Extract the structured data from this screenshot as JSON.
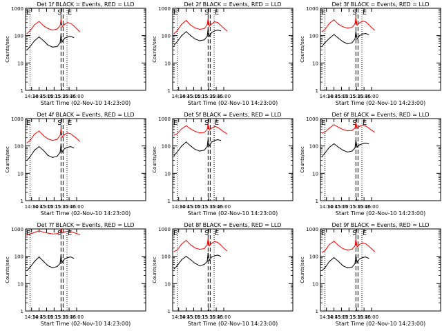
{
  "chart_data": [
    {
      "type": "line",
      "title": "Det 1f BLACK = Events, RED = LLD",
      "xlabel": "Start Time (02-Nov-10 14:23:00)",
      "ylabel": "Counts/sec",
      "ylog": true,
      "ylim": [
        1,
        1000
      ],
      "xlim_minutes": [
        14.3,
        18.3
      ],
      "yticks": [
        "1",
        "10",
        "100",
        "1000"
      ],
      "xticks": [
        "14:30",
        "14:45",
        "15:00",
        "15:15",
        "15:30",
        "15:45",
        "16:00"
      ],
      "annotations": {
        "E_left": "E",
        "S": "S",
        "E_right": "E"
      },
      "series": [
        {
          "name": "LLD",
          "color": "#ff0000",
          "x": [
            14.35,
            14.45,
            14.6,
            14.75,
            14.9,
            15.05,
            15.2,
            15.35,
            15.45,
            15.48,
            15.52,
            15.6,
            15.7,
            15.8,
            15.9,
            16.0,
            16.1
          ],
          "y": [
            120,
            150,
            250,
            330,
            230,
            180,
            160,
            175,
            230,
            400,
            210,
            260,
            300,
            280,
            230,
            180,
            140
          ]
        },
        {
          "name": "Events",
          "color": "#000000",
          "x": [
            14.35,
            14.45,
            14.6,
            14.75,
            14.9,
            15.05,
            15.2,
            15.35,
            15.45,
            15.48,
            15.52,
            15.6,
            15.7,
            15.8,
            15.9
          ],
          "y": [
            30,
            40,
            65,
            90,
            65,
            45,
            38,
            40,
            55,
            110,
            60,
            80,
            90,
            95,
            85
          ]
        }
      ]
    },
    {
      "type": "line",
      "title": "Det 2f BLACK = Events, RED = LLD",
      "xlabel": "Start Time (02-Nov-10 14:23:00)",
      "ylabel": "Counts/sec",
      "ylog": true,
      "ylim": [
        1,
        1000
      ],
      "xlim_minutes": [
        14.3,
        18.3
      ],
      "yticks": [
        "1",
        "10",
        "100",
        "1000"
      ],
      "xticks": [
        "14:30",
        "14:45",
        "15:00",
        "15:15",
        "15:30",
        "15:45",
        "16:00"
      ],
      "annotations": {
        "E_left": "E",
        "S": "S",
        "E_right": "E"
      },
      "series": [
        {
          "name": "LLD",
          "color": "#ff0000",
          "x": [
            14.35,
            14.45,
            14.6,
            14.75,
            14.9,
            15.05,
            15.2,
            15.35,
            15.45,
            15.48,
            15.52,
            15.6,
            15.7,
            15.8,
            15.9,
            16.0,
            16.1
          ],
          "y": [
            120,
            150,
            260,
            360,
            240,
            190,
            170,
            180,
            250,
            420,
            220,
            270,
            320,
            300,
            240,
            190,
            150
          ]
        },
        {
          "name": "Events",
          "color": "#000000",
          "x": [
            14.35,
            14.45,
            14.6,
            14.75,
            14.9,
            15.05,
            15.2,
            15.35,
            15.45,
            15.48,
            15.52,
            15.6,
            15.7,
            15.8,
            15.9
          ],
          "y": [
            45,
            60,
            100,
            140,
            100,
            75,
            65,
            70,
            95,
            180,
            95,
            130,
            150,
            160,
            150
          ]
        }
      ]
    },
    {
      "type": "line",
      "title": "Det 3f BLACK = Events, RED = LLD",
      "xlabel": "Start Time (02-Nov-10 14:23:00)",
      "ylabel": "Counts/sec",
      "ylog": true,
      "ylim": [
        1,
        1000
      ],
      "xlim_minutes": [
        14.3,
        18.3
      ],
      "yticks": [
        "1",
        "10",
        "100",
        "1000"
      ],
      "xticks": [
        "14:30",
        "14:45",
        "15:00",
        "15:15",
        "15:30",
        "15:45",
        "16:00"
      ],
      "annotations": {
        "E_left": "E",
        "S": "S",
        "E_right": "E"
      },
      "series": [
        {
          "name": "LLD",
          "color": "#ff0000",
          "x": [
            14.35,
            14.45,
            14.6,
            14.75,
            14.9,
            15.05,
            15.2,
            15.35,
            15.45,
            15.48,
            15.52,
            15.6,
            15.7,
            15.8,
            15.9,
            16.0,
            16.1
          ],
          "y": [
            140,
            170,
            280,
            380,
            260,
            210,
            190,
            200,
            270,
            460,
            240,
            290,
            340,
            320,
            260,
            200,
            160
          ]
        },
        {
          "name": "Events",
          "color": "#000000",
          "x": [
            14.35,
            14.45,
            14.6,
            14.75,
            14.9,
            15.05,
            15.2,
            15.35,
            15.45,
            15.48,
            15.52,
            15.6,
            15.7,
            15.8,
            15.9
          ],
          "y": [
            40,
            55,
            80,
            110,
            80,
            60,
            50,
            55,
            75,
            140,
            75,
            100,
            115,
            120,
            110
          ]
        }
      ]
    },
    {
      "type": "line",
      "title": "Det 4f BLACK = Events, RED = LLD",
      "xlabel": "Start Time (02-Nov-10 14:23:00)",
      "ylabel": "Counts/sec",
      "ylog": true,
      "ylim": [
        1,
        1000
      ],
      "xlim_minutes": [
        14.3,
        18.3
      ],
      "yticks": [
        "1",
        "10",
        "100",
        "1000"
      ],
      "xticks": [
        "14:30",
        "14:45",
        "15:00",
        "15:15",
        "15:30",
        "15:45",
        "16:00"
      ],
      "annotations": {
        "E_left": "E",
        "S": "S",
        "E_right": "E"
      },
      "series": [
        {
          "name": "LLD",
          "color": "#ff0000",
          "x": [
            14.35,
            14.45,
            14.6,
            14.75,
            14.9,
            15.05,
            15.2,
            15.35,
            15.45,
            15.48,
            15.52,
            15.6,
            15.7,
            15.8,
            15.9,
            16.0,
            16.1
          ],
          "y": [
            130,
            160,
            270,
            350,
            240,
            180,
            160,
            175,
            240,
            420,
            210,
            260,
            300,
            280,
            230,
            190,
            150
          ]
        },
        {
          "name": "Events",
          "color": "#000000",
          "x": [
            14.35,
            14.45,
            14.6,
            14.75,
            14.9,
            15.05,
            15.2,
            15.35,
            15.45,
            15.48,
            15.52,
            15.6,
            15.7,
            15.8,
            15.9
          ],
          "y": [
            30,
            40,
            70,
            95,
            68,
            45,
            38,
            42,
            58,
            115,
            60,
            80,
            90,
            95,
            85
          ]
        }
      ]
    },
    {
      "type": "line",
      "title": "Det 5f BLACK = Events, RED = LLD",
      "xlabel": "Start Time (02-Nov-10 14:23:00)",
      "ylabel": "Counts/sec",
      "ylog": true,
      "ylim": [
        1,
        1000
      ],
      "xlim_minutes": [
        14.3,
        18.3
      ],
      "yticks": [
        "1",
        "10",
        "100",
        "1000"
      ],
      "xticks": [
        "14:30",
        "14:45",
        "15:00",
        "15:15",
        "15:30",
        "15:45",
        "16:00"
      ],
      "annotations": {
        "E_left": "E",
        "S": "S",
        "E_right": "E"
      },
      "series": [
        {
          "name": "LLD",
          "color": "#ff0000",
          "x": [
            14.35,
            14.45,
            14.6,
            14.75,
            14.9,
            15.05,
            15.2,
            15.35,
            15.45,
            15.48,
            15.52,
            15.6,
            15.7,
            15.8,
            15.9,
            16.0,
            16.1
          ],
          "y": [
            250,
            280,
            420,
            550,
            420,
            340,
            300,
            310,
            400,
            650,
            380,
            450,
            520,
            480,
            400,
            330,
            280
          ]
        },
        {
          "name": "Events",
          "color": "#000000",
          "x": [
            14.35,
            14.45,
            14.6,
            14.75,
            14.9,
            15.05,
            15.2,
            15.35,
            15.45,
            15.48,
            15.52,
            15.6,
            15.7,
            15.8,
            15.9
          ],
          "y": [
            45,
            60,
            100,
            140,
            100,
            75,
            65,
            70,
            95,
            180,
            100,
            140,
            160,
            170,
            160
          ]
        }
      ]
    },
    {
      "type": "line",
      "title": "Det 6f BLACK = Events, RED = LLD",
      "xlabel": "Start Time (02-Nov-10 14:23:00)",
      "ylabel": "Counts/sec",
      "ylog": true,
      "ylim": [
        1,
        1000
      ],
      "xlim_minutes": [
        14.3,
        18.3
      ],
      "yticks": [
        "1",
        "10",
        "100",
        "1000"
      ],
      "xticks": [
        "14:30",
        "14:45",
        "15:00",
        "15:15",
        "15:30",
        "15:45",
        "16:00"
      ],
      "annotations": {
        "E_left": "E",
        "S": "S",
        "E_right": "E"
      },
      "series": [
        {
          "name": "LLD",
          "color": "#ff0000",
          "x": [
            14.35,
            14.45,
            14.6,
            14.75,
            14.9,
            15.05,
            15.2,
            15.35,
            15.45,
            15.48,
            15.52,
            15.6,
            15.7,
            15.8,
            15.9,
            16.0,
            16.1
          ],
          "y": [
            300,
            320,
            450,
            600,
            480,
            400,
            360,
            370,
            450,
            750,
            450,
            520,
            580,
            540,
            460,
            380,
            320
          ]
        },
        {
          "name": "Events",
          "color": "#000000",
          "x": [
            14.35,
            14.45,
            14.6,
            14.75,
            14.9,
            15.05,
            15.2,
            15.35,
            15.45,
            15.48,
            15.52,
            15.6,
            15.7,
            15.8,
            15.9
          ],
          "y": [
            40,
            55,
            90,
            120,
            90,
            70,
            60,
            65,
            85,
            160,
            90,
            110,
            120,
            125,
            120
          ]
        }
      ]
    },
    {
      "type": "line",
      "title": "Det 7f BLACK = Events, RED = LLD",
      "xlabel": "Start Time (02-Nov-10 14:23:00)",
      "ylabel": "Counts/sec",
      "ylog": true,
      "ylim": [
        1,
        1000
      ],
      "xlim_minutes": [
        14.3,
        18.3
      ],
      "yticks": [
        "1",
        "10",
        "100",
        "1000"
      ],
      "xticks": [
        "14:30",
        "14:45",
        "15:00",
        "15:15",
        "15:30",
        "15:45",
        "16:00"
      ],
      "annotations": {
        "E_left": "E",
        "S": "S",
        "E_right": "E"
      },
      "series": [
        {
          "name": "LLD",
          "color": "#ff0000",
          "x": [
            14.35,
            14.45,
            14.6,
            14.75,
            14.9,
            15.05,
            15.2,
            15.35,
            15.45,
            15.48,
            15.52,
            15.6,
            15.7,
            15.8,
            15.9,
            16.0,
            16.1
          ],
          "y": [
            600,
            650,
            750,
            850,
            760,
            700,
            660,
            670,
            740,
            950,
            720,
            780,
            820,
            800,
            740,
            680,
            620
          ]
        },
        {
          "name": "Events",
          "color": "#000000",
          "x": [
            14.35,
            14.45,
            14.6,
            14.75,
            14.9,
            15.05,
            15.2,
            15.35,
            15.45,
            15.48,
            15.52,
            15.6,
            15.7,
            15.8,
            15.9
          ],
          "y": [
            30,
            40,
            65,
            95,
            65,
            45,
            38,
            42,
            55,
            110,
            60,
            80,
            90,
            95,
            85
          ]
        }
      ]
    },
    {
      "type": "line",
      "title": "Det 8f BLACK = Events, RED = LLD",
      "xlabel": "Start Time (02-Nov-10 14:23:00)",
      "ylabel": "Counts/sec",
      "ylog": true,
      "ylim": [
        1,
        1000
      ],
      "xlim_minutes": [
        14.3,
        18.3
      ],
      "yticks": [
        "1",
        "10",
        "100",
        "1000"
      ],
      "xticks": [
        "14:30",
        "14:45",
        "15:00",
        "15:15",
        "15:30",
        "15:45",
        "16:00"
      ],
      "annotations": {
        "E_left": "E",
        "S": "S",
        "E_right": "E"
      },
      "series": [
        {
          "name": "LLD",
          "color": "#ff0000",
          "x": [
            14.35,
            14.45,
            14.6,
            14.75,
            14.9,
            15.05,
            15.2,
            15.35,
            15.45,
            15.48,
            15.52,
            15.6,
            15.7,
            15.8,
            15.9,
            16.0,
            16.1
          ],
          "y": [
            150,
            170,
            280,
            380,
            260,
            200,
            180,
            190,
            260,
            450,
            240,
            300,
            350,
            320,
            260,
            200,
            160
          ]
        },
        {
          "name": "Events",
          "color": "#000000",
          "x": [
            14.35,
            14.45,
            14.6,
            14.75,
            14.9,
            15.05,
            15.2,
            15.35,
            15.45,
            15.48,
            15.52,
            15.6,
            15.7,
            15.8,
            15.9
          ],
          "y": [
            35,
            45,
            75,
            100,
            75,
            55,
            45,
            50,
            65,
            130,
            70,
            95,
            105,
            110,
            100
          ]
        }
      ]
    },
    {
      "type": "line",
      "title": "Det 9f BLACK = Events, RED = LLD",
      "xlabel": "Start Time (02-Nov-10 14:23:00)",
      "ylabel": "Counts/sec",
      "ylog": true,
      "ylim": [
        1,
        1000
      ],
      "xlim_minutes": [
        14.3,
        18.3
      ],
      "yticks": [
        "1",
        "10",
        "100",
        "1000"
      ],
      "xticks": [
        "14:30",
        "14:45",
        "15:00",
        "15:15",
        "15:30",
        "15:45",
        "16:00"
      ],
      "annotations": {
        "E_left": "E",
        "S": "S",
        "E_right": "E"
      },
      "series": [
        {
          "name": "LLD",
          "color": "#ff0000",
          "x": [
            14.35,
            14.45,
            14.6,
            14.75,
            14.9,
            15.05,
            15.2,
            15.35,
            15.45,
            15.48,
            15.52,
            15.6,
            15.7,
            15.8,
            15.9,
            16.0,
            16.1
          ],
          "y": [
            140,
            160,
            270,
            360,
            250,
            190,
            170,
            180,
            240,
            430,
            220,
            270,
            310,
            290,
            240,
            190,
            150
          ]
        },
        {
          "name": "Events",
          "color": "#000000",
          "x": [
            14.35,
            14.45,
            14.6,
            14.75,
            14.9,
            15.05,
            15.2,
            15.35,
            15.45,
            15.48,
            15.52,
            15.6,
            15.7,
            15.8,
            15.9
          ],
          "y": [
            30,
            38,
            65,
            90,
            65,
            45,
            38,
            40,
            55,
            110,
            60,
            80,
            90,
            95,
            85
          ]
        }
      ]
    }
  ]
}
